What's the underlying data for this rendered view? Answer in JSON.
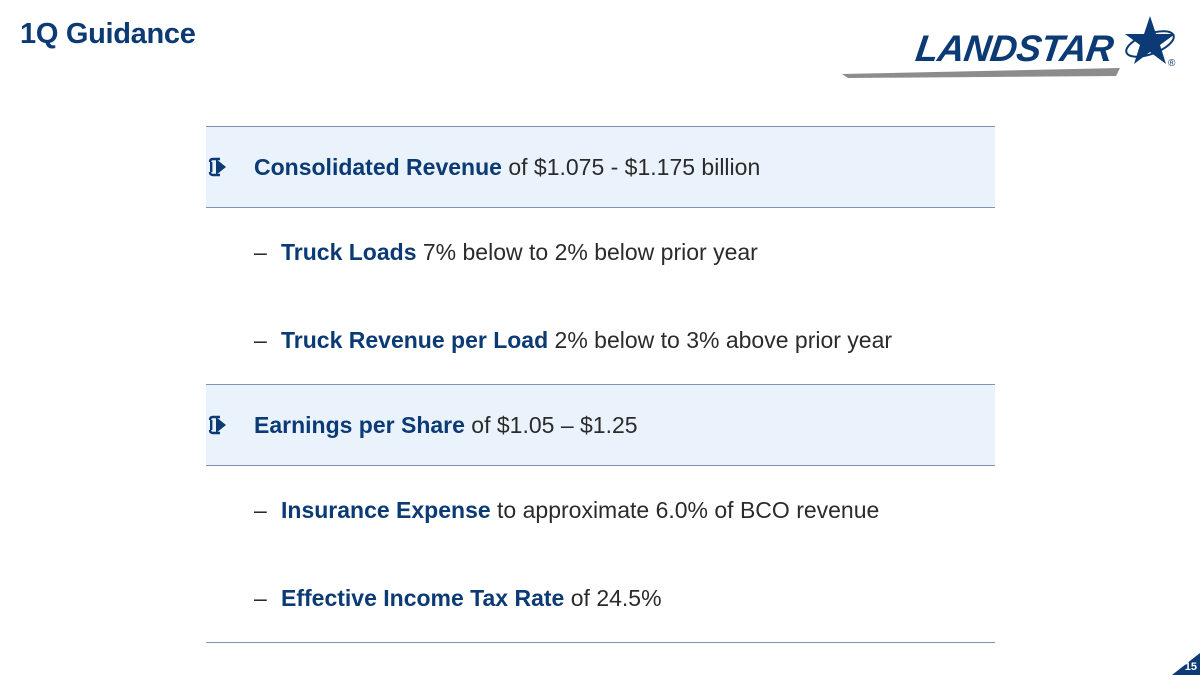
{
  "header": {
    "title": "1Q Guidance"
  },
  "logo": {
    "text": "LANDSTAR",
    "registered": "®"
  },
  "rows": [
    {
      "kind": "main",
      "icon": "arrow-right-icon",
      "bold": "Consolidated Revenue",
      "rest": " of $1.075 - $1.175 billion"
    },
    {
      "kind": "sub",
      "dash": "–",
      "bold": "Truck Loads",
      "rest": " 7% below to 2% below prior year"
    },
    {
      "kind": "sub",
      "dash": "–",
      "bold": "Truck Revenue per Load",
      "rest": " 2% below to 3% above prior year"
    },
    {
      "kind": "main",
      "icon": "arrow-right-icon",
      "bold": "Earnings per Share",
      "rest": " of $1.05 – $1.25"
    },
    {
      "kind": "sub",
      "dash": "–",
      "bold": "Insurance Expense",
      "rest": " to approximate 6.0% of BCO revenue"
    },
    {
      "kind": "sub",
      "dash": "–",
      "bold": "Effective Income Tax Rate",
      "rest": " of 24.5%"
    }
  ],
  "footer": {
    "page_number": "15"
  },
  "colors": {
    "brand_navy": "#0b3a75",
    "row_highlight": "#eaf3fc",
    "rule": "#7f93b5"
  }
}
